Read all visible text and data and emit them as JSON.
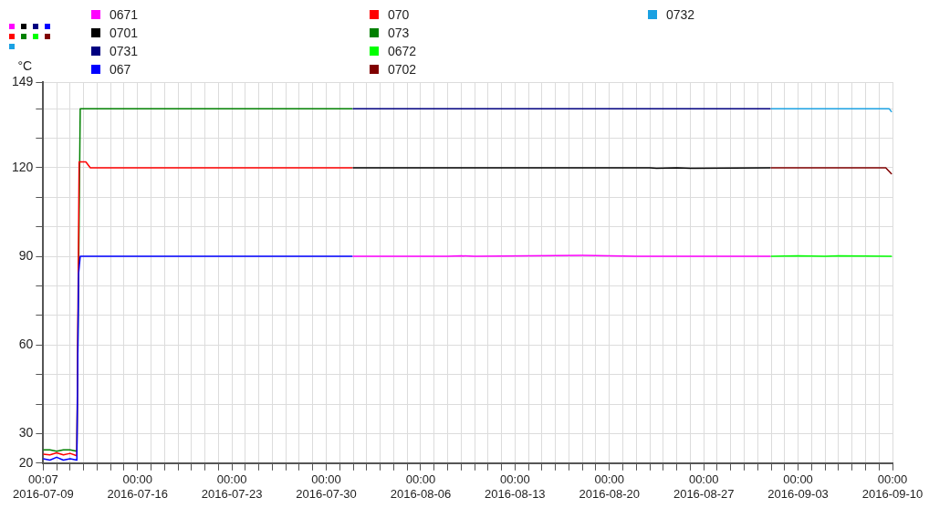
{
  "chart_data": {
    "type": "line",
    "ylabel": "°C",
    "legend": "top",
    "grid": true,
    "marker": "none",
    "line_style": "solid",
    "ylim": [
      20,
      149
    ],
    "yticks": [
      20,
      30,
      {
        "value": 40,
        "label": null
      },
      {
        "value": 50,
        "label": null
      },
      60,
      {
        "value": 70,
        "label": null
      },
      {
        "value": 80,
        "label": null
      },
      90,
      {
        "value": 100,
        "label": null
      },
      {
        "value": 110,
        "label": null
      },
      120,
      {
        "value": 130,
        "label": null
      },
      {
        "value": 140,
        "label": null
      },
      149
    ],
    "xlim": [
      "2016-07-09T00:07",
      "2016-09-10T00:00"
    ],
    "xticks": [
      {
        "value": "2016-07-09T00:07",
        "label": "00:07\n2016-07-09"
      },
      {
        "value": "2016-07-10T00:00",
        "label": null
      },
      {
        "value": "2016-07-11T00:00",
        "label": null
      },
      {
        "value": "2016-07-12T00:00",
        "label": null
      },
      {
        "value": "2016-07-13T00:00",
        "label": null
      },
      {
        "value": "2016-07-14T00:00",
        "label": null
      },
      {
        "value": "2016-07-15T00:00",
        "label": null
      },
      {
        "value": "2016-07-16T00:00",
        "label": "00:00\n2016-07-16"
      },
      {
        "value": "2016-07-17T00:00",
        "label": null
      },
      {
        "value": "2016-07-18T00:00",
        "label": null
      },
      {
        "value": "2016-07-19T00:00",
        "label": null
      },
      {
        "value": "2016-07-20T00:00",
        "label": null
      },
      {
        "value": "2016-07-21T00:00",
        "label": null
      },
      {
        "value": "2016-07-22T00:00",
        "label": null
      },
      {
        "value": "2016-07-23T00:00",
        "label": "00:00\n2016-07-23"
      },
      {
        "value": "2016-07-24T00:00",
        "label": null
      },
      {
        "value": "2016-07-25T00:00",
        "label": null
      },
      {
        "value": "2016-07-26T00:00",
        "label": null
      },
      {
        "value": "2016-07-27T00:00",
        "label": null
      },
      {
        "value": "2016-07-28T00:00",
        "label": null
      },
      {
        "value": "2016-07-29T00:00",
        "label": null
      },
      {
        "value": "2016-07-30T00:00",
        "label": "00:00\n2016-07-30"
      },
      {
        "value": "2016-07-31T00:00",
        "label": null
      },
      {
        "value": "2016-08-01T00:00",
        "label": null
      },
      {
        "value": "2016-08-02T00:00",
        "label": null
      },
      {
        "value": "2016-08-03T00:00",
        "label": null
      },
      {
        "value": "2016-08-04T00:00",
        "label": null
      },
      {
        "value": "2016-08-05T00:00",
        "label": null
      },
      {
        "value": "2016-08-06T00:00",
        "label": "00:00\n2016-08-06"
      },
      {
        "value": "2016-08-07T00:00",
        "label": null
      },
      {
        "value": "2016-08-08T00:00",
        "label": null
      },
      {
        "value": "2016-08-09T00:00",
        "label": null
      },
      {
        "value": "2016-08-10T00:00",
        "label": null
      },
      {
        "value": "2016-08-11T00:00",
        "label": null
      },
      {
        "value": "2016-08-12T00:00",
        "label": null
      },
      {
        "value": "2016-08-13T00:00",
        "label": "00:00\n2016-08-13"
      },
      {
        "value": "2016-08-14T00:00",
        "label": null
      },
      {
        "value": "2016-08-15T00:00",
        "label": null
      },
      {
        "value": "2016-08-16T00:00",
        "label": null
      },
      {
        "value": "2016-08-17T00:00",
        "label": null
      },
      {
        "value": "2016-08-18T00:00",
        "label": null
      },
      {
        "value": "2016-08-19T00:00",
        "label": null
      },
      {
        "value": "2016-08-20T00:00",
        "label": "00:00\n2016-08-20"
      },
      {
        "value": "2016-08-21T00:00",
        "label": null
      },
      {
        "value": "2016-08-22T00:00",
        "label": null
      },
      {
        "value": "2016-08-23T00:00",
        "label": null
      },
      {
        "value": "2016-08-24T00:00",
        "label": null
      },
      {
        "value": "2016-08-25T00:00",
        "label": null
      },
      {
        "value": "2016-08-26T00:00",
        "label": null
      },
      {
        "value": "2016-08-27T00:00",
        "label": "00:00\n2016-08-27"
      },
      {
        "value": "2016-08-28T00:00",
        "label": null
      },
      {
        "value": "2016-08-29T00:00",
        "label": null
      },
      {
        "value": "2016-08-30T00:00",
        "label": null
      },
      {
        "value": "2016-08-31T00:00",
        "label": null
      },
      {
        "value": "2016-09-01T00:00",
        "label": null
      },
      {
        "value": "2016-09-02T00:00",
        "label": null
      },
      {
        "value": "2016-09-03T00:00",
        "label": "00:00\n2016-09-03"
      },
      {
        "value": "2016-09-04T00:00",
        "label": null
      },
      {
        "value": "2016-09-05T00:00",
        "label": null
      },
      {
        "value": "2016-09-06T00:00",
        "label": null
      },
      {
        "value": "2016-09-07T00:00",
        "label": null
      },
      {
        "value": "2016-09-08T00:00",
        "label": null
      },
      {
        "value": "2016-09-09T00:00",
        "label": null
      },
      {
        "value": "2016-09-10T00:00",
        "label": "00:00\n2016-09-10"
      }
    ],
    "series": [
      {
        "name": "0671",
        "color": "#ff00ff",
        "x": [
          "2016-08-01T00:00",
          "2016-08-08T00:00",
          "2016-08-09T00:00",
          "2016-08-10T00:00",
          "2016-08-18T00:00",
          "2016-08-20T00:00",
          "2016-08-22T00:00",
          "2016-08-31T22:00"
        ],
        "values": [
          90,
          90,
          90.2,
          90,
          90.3,
          90.2,
          90,
          90
        ]
      },
      {
        "name": "0701",
        "color": "#000000",
        "x": [
          "2016-08-01T00:00",
          "2016-08-23T00:00",
          "2016-08-23T12:00",
          "2016-08-25T00:00",
          "2016-08-26T00:00",
          "2016-08-31T22:00"
        ],
        "values": [
          120,
          120,
          119.8,
          120,
          119.8,
          120
        ]
      },
      {
        "name": "0731",
        "color": "#000080",
        "x": [
          "2016-08-01T00:00",
          "2016-08-31T22:00"
        ],
        "values": [
          140,
          140
        ]
      },
      {
        "name": "067",
        "color": "#0000ff",
        "x": [
          "2016-07-09T00:07",
          "2016-07-09T12:00",
          "2016-07-10T00:00",
          "2016-07-10T12:00",
          "2016-07-11T00:00",
          "2016-07-11T12:00",
          "2016-07-11T15:00",
          "2016-07-11T18:00",
          "2016-07-31T22:00"
        ],
        "values": [
          21.5,
          21,
          22,
          21,
          21.5,
          21,
          84,
          90,
          90
        ]
      },
      {
        "name": "070",
        "color": "#ff0000",
        "x": [
          "2016-07-09T00:07",
          "2016-07-09T12:00",
          "2016-07-10T00:00",
          "2016-07-10T12:00",
          "2016-07-11T00:00",
          "2016-07-11T12:00",
          "2016-07-11T16:00",
          "2016-07-12T04:00",
          "2016-07-12T12:00",
          "2016-07-31T22:00"
        ],
        "values": [
          23,
          22.8,
          23.5,
          22.8,
          23.3,
          22.5,
          122,
          122,
          120,
          120
        ]
      },
      {
        "name": "073",
        "color": "#008000",
        "x": [
          "2016-07-09T00:07",
          "2016-07-09T12:00",
          "2016-07-10T00:00",
          "2016-07-10T12:00",
          "2016-07-11T00:00",
          "2016-07-11T12:00",
          "2016-07-11T18:00",
          "2016-07-31T22:00"
        ],
        "values": [
          24.5,
          24.5,
          24,
          24.5,
          24.5,
          24,
          140,
          140
        ]
      },
      {
        "name": "0672",
        "color": "#00ff00",
        "x": [
          "2016-09-01T00:00",
          "2016-09-03T00:00",
          "2016-09-05T00:00",
          "2016-09-06T00:00",
          "2016-09-09T22:00"
        ],
        "values": [
          90,
          90.2,
          90,
          90.2,
          90
        ]
      },
      {
        "name": "0702",
        "color": "#800000",
        "x": [
          "2016-09-01T00:00",
          "2016-09-09T12:00",
          "2016-09-09T22:00"
        ],
        "values": [
          120,
          120,
          118
        ]
      },
      {
        "name": "0732",
        "color": "#1ba1e2",
        "x": [
          "2016-09-01T00:00",
          "2016-09-09T18:00",
          "2016-09-09T22:00"
        ],
        "values": [
          140,
          140,
          139
        ]
      }
    ]
  }
}
